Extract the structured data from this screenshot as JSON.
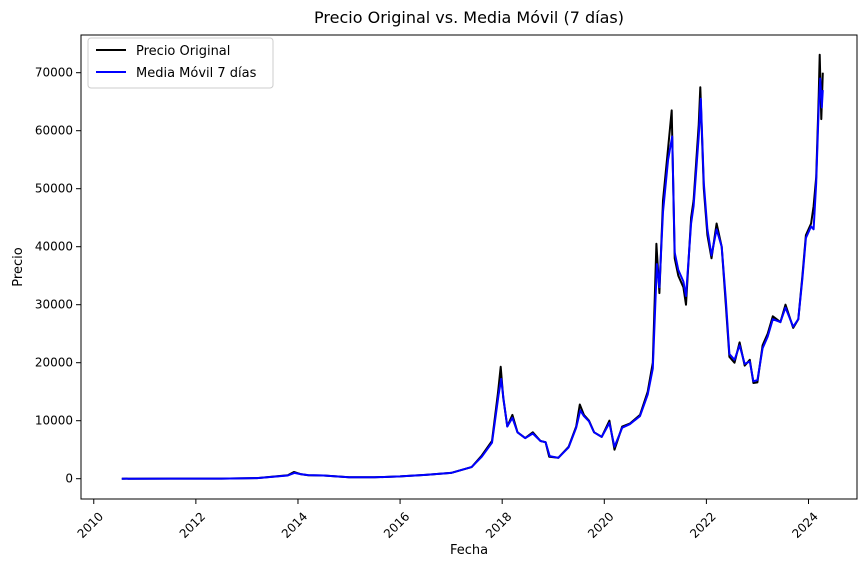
{
  "chart_data": {
    "type": "line",
    "title": "Precio Original vs. Media Móvil (7 días)",
    "xlabel": "Fecha",
    "ylabel": "Precio",
    "xlim": [
      2009.75,
      2024.95
    ],
    "ylim": [
      -3500,
      76500
    ],
    "x_ticks": [
      2010,
      2012,
      2014,
      2016,
      2018,
      2020,
      2022,
      2024
    ],
    "x_tick_labels": [
      "2010",
      "2012",
      "2014",
      "2016",
      "2018",
      "2020",
      "2022",
      "2024"
    ],
    "y_ticks": [
      0,
      10000,
      20000,
      30000,
      40000,
      50000,
      60000,
      70000
    ],
    "y_tick_labels": [
      "0",
      "10000",
      "20000",
      "30000",
      "40000",
      "50000",
      "60000",
      "70000"
    ],
    "grid": false,
    "legend_position": "top-left",
    "series": [
      {
        "name": "Precio Original",
        "color": "#000000",
        "points": [
          [
            2010.55,
            0
          ],
          [
            2011.5,
            10
          ],
          [
            2012.5,
            10
          ],
          [
            2013.2,
            100
          ],
          [
            2013.8,
            600
          ],
          [
            2013.92,
            1150
          ],
          [
            2014.05,
            800
          ],
          [
            2014.2,
            600
          ],
          [
            2014.5,
            550
          ],
          [
            2015.0,
            250
          ],
          [
            2015.5,
            250
          ],
          [
            2016.0,
            400
          ],
          [
            2016.5,
            650
          ],
          [
            2017.0,
            1000
          ],
          [
            2017.4,
            2000
          ],
          [
            2017.6,
            4000
          ],
          [
            2017.8,
            6500
          ],
          [
            2017.92,
            15000
          ],
          [
            2017.97,
            19300
          ],
          [
            2018.02,
            14000
          ],
          [
            2018.1,
            9000
          ],
          [
            2018.2,
            11000
          ],
          [
            2018.3,
            8000
          ],
          [
            2018.45,
            7000
          ],
          [
            2018.6,
            8000
          ],
          [
            2018.75,
            6500
          ],
          [
            2018.85,
            6300
          ],
          [
            2018.92,
            3800
          ],
          [
            2019.1,
            3600
          ],
          [
            2019.3,
            5500
          ],
          [
            2019.45,
            9000
          ],
          [
            2019.52,
            12800
          ],
          [
            2019.6,
            11000
          ],
          [
            2019.7,
            10000
          ],
          [
            2019.8,
            8000
          ],
          [
            2019.95,
            7200
          ],
          [
            2020.1,
            10000
          ],
          [
            2020.2,
            5000
          ],
          [
            2020.35,
            9000
          ],
          [
            2020.5,
            9500
          ],
          [
            2020.7,
            11000
          ],
          [
            2020.85,
            15000
          ],
          [
            2020.95,
            20000
          ],
          [
            2021.02,
            40500
          ],
          [
            2021.08,
            32000
          ],
          [
            2021.15,
            48000
          ],
          [
            2021.25,
            57000
          ],
          [
            2021.32,
            63500
          ],
          [
            2021.38,
            38000
          ],
          [
            2021.45,
            35000
          ],
          [
            2021.55,
            33000
          ],
          [
            2021.6,
            30000
          ],
          [
            2021.7,
            45000
          ],
          [
            2021.75,
            48000
          ],
          [
            2021.85,
            61000
          ],
          [
            2021.88,
            67500
          ],
          [
            2021.95,
            50000
          ],
          [
            2022.02,
            42000
          ],
          [
            2022.1,
            38000
          ],
          [
            2022.2,
            44000
          ],
          [
            2022.3,
            40000
          ],
          [
            2022.38,
            30000
          ],
          [
            2022.45,
            21000
          ],
          [
            2022.55,
            20000
          ],
          [
            2022.65,
            23500
          ],
          [
            2022.75,
            19500
          ],
          [
            2022.85,
            20500
          ],
          [
            2022.92,
            16500
          ],
          [
            2023.0,
            16600
          ],
          [
            2023.1,
            23000
          ],
          [
            2023.2,
            25000
          ],
          [
            2023.3,
            28000
          ],
          [
            2023.45,
            27000
          ],
          [
            2023.55,
            30000
          ],
          [
            2023.7,
            26000
          ],
          [
            2023.8,
            27500
          ],
          [
            2023.88,
            35000
          ],
          [
            2023.95,
            42000
          ],
          [
            2024.05,
            44000
          ],
          [
            2024.1,
            47000
          ],
          [
            2024.15,
            52000
          ],
          [
            2024.2,
            66000
          ],
          [
            2024.22,
            73100
          ],
          [
            2024.25,
            62000
          ],
          [
            2024.28,
            70000
          ]
        ]
      },
      {
        "name": "Media Móvil 7 días",
        "color": "#0000ff",
        "points": [
          [
            2010.55,
            0
          ],
          [
            2011.5,
            10
          ],
          [
            2012.5,
            10
          ],
          [
            2013.2,
            100
          ],
          [
            2013.8,
            550
          ],
          [
            2013.93,
            1000
          ],
          [
            2014.05,
            800
          ],
          [
            2014.2,
            620
          ],
          [
            2014.5,
            550
          ],
          [
            2015.0,
            260
          ],
          [
            2015.5,
            250
          ],
          [
            2016.0,
            400
          ],
          [
            2016.5,
            650
          ],
          [
            2017.0,
            1000
          ],
          [
            2017.4,
            2000
          ],
          [
            2017.6,
            3800
          ],
          [
            2017.8,
            6200
          ],
          [
            2017.93,
            14500
          ],
          [
            2017.98,
            17200
          ],
          [
            2018.03,
            13500
          ],
          [
            2018.1,
            9000
          ],
          [
            2018.2,
            10500
          ],
          [
            2018.3,
            8000
          ],
          [
            2018.45,
            7000
          ],
          [
            2018.6,
            7800
          ],
          [
            2018.75,
            6500
          ],
          [
            2018.85,
            6300
          ],
          [
            2018.93,
            3900
          ],
          [
            2019.1,
            3600
          ],
          [
            2019.3,
            5400
          ],
          [
            2019.45,
            8800
          ],
          [
            2019.53,
            11800
          ],
          [
            2019.6,
            10800
          ],
          [
            2019.7,
            9900
          ],
          [
            2019.8,
            8000
          ],
          [
            2019.95,
            7200
          ],
          [
            2020.1,
            9600
          ],
          [
            2020.2,
            5500
          ],
          [
            2020.35,
            8800
          ],
          [
            2020.5,
            9400
          ],
          [
            2020.7,
            10800
          ],
          [
            2020.85,
            14500
          ],
          [
            2020.95,
            19000
          ],
          [
            2021.03,
            37000
          ],
          [
            2021.08,
            33000
          ],
          [
            2021.15,
            46000
          ],
          [
            2021.25,
            55000
          ],
          [
            2021.33,
            59000
          ],
          [
            2021.38,
            39000
          ],
          [
            2021.45,
            36000
          ],
          [
            2021.55,
            34000
          ],
          [
            2021.6,
            31500
          ],
          [
            2021.7,
            44000
          ],
          [
            2021.75,
            47000
          ],
          [
            2021.85,
            59000
          ],
          [
            2021.89,
            65500
          ],
          [
            2021.95,
            51000
          ],
          [
            2022.02,
            43000
          ],
          [
            2022.1,
            38500
          ],
          [
            2022.2,
            43000
          ],
          [
            2022.3,
            40000
          ],
          [
            2022.38,
            31000
          ],
          [
            2022.45,
            21500
          ],
          [
            2022.55,
            20500
          ],
          [
            2022.65,
            23000
          ],
          [
            2022.75,
            19800
          ],
          [
            2022.85,
            20200
          ],
          [
            2022.92,
            16800
          ],
          [
            2023.0,
            17000
          ],
          [
            2023.1,
            22500
          ],
          [
            2023.2,
            24500
          ],
          [
            2023.3,
            27500
          ],
          [
            2023.45,
            27000
          ],
          [
            2023.55,
            29500
          ],
          [
            2023.7,
            26200
          ],
          [
            2023.8,
            27500
          ],
          [
            2023.88,
            34500
          ],
          [
            2023.95,
            41500
          ],
          [
            2024.05,
            43500
          ],
          [
            2024.1,
            43000
          ],
          [
            2024.15,
            51000
          ],
          [
            2024.2,
            64000
          ],
          [
            2024.23,
            69000
          ],
          [
            2024.26,
            64000
          ],
          [
            2024.28,
            67000
          ]
        ]
      }
    ]
  }
}
